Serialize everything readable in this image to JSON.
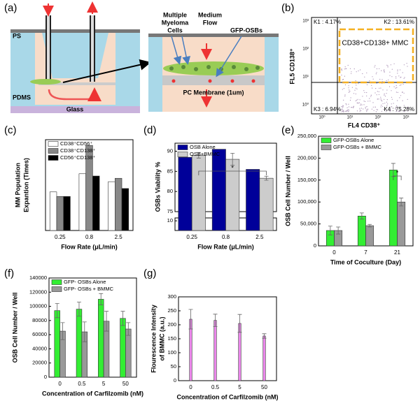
{
  "panel_labels": [
    "(a)",
    "(b)",
    "(c)",
    "(d)",
    "(e)",
    "(f)",
    "(g)"
  ],
  "diagram": {
    "ps": "PS",
    "pdms": "PDMS",
    "glass": "Glass",
    "cells": [
      "Multiple",
      "Myeloma",
      "Cells"
    ],
    "flow": [
      "Medium",
      "Flow"
    ],
    "osbs": "GFP-OSBs",
    "membrane": "PC Membrane (1um)"
  },
  "flow_cytometry": {
    "quadrants": [
      "K1 : 4.17%",
      "K2 : 13.61%",
      "K3 : 6.94%",
      "K4 : 75.28%"
    ],
    "gate": "CD38+CD138+ MMC",
    "ylabel": "FL5 CD138⁺",
    "xlabel": "FL4  CD38⁺",
    "xtick_labels": [
      "10⁰",
      "10¹",
      "10²",
      "10³"
    ],
    "ytick_labels": [
      "10⁰",
      "10¹",
      "10²",
      "10³"
    ]
  },
  "chart_data": [
    {
      "type": "bar",
      "ylabel": [
        "MM Population",
        "Expantion (Times)"
      ],
      "xlabel": "Flow Rate (μL/min)",
      "categories": [
        "0.25",
        "0.8",
        "2.5"
      ],
      "ylim": [
        0,
        8
      ],
      "legend": "upper left",
      "series": [
        {
          "name": "CD38⁺CD56⁺",
          "color": "#ffffff",
          "values": [
            3.4,
            5.0,
            4.3
          ]
        },
        {
          "name": "CD38⁺CD138⁺",
          "color": "#888888",
          "values": [
            3.0,
            7.5,
            4.6
          ]
        },
        {
          "name": "CD56⁺CD138⁺",
          "color": "#000000",
          "values": [
            3.0,
            4.8,
            3.7
          ]
        }
      ]
    },
    {
      "type": "bar",
      "ylabel": "OSBs Viability %",
      "xlabel": "Flow Rate (μL/min)",
      "categories": [
        "0.25",
        "0.8",
        "2.5"
      ],
      "ylim": [
        75,
        92
      ],
      "yticks": [
        75,
        80,
        85,
        90
      ],
      "ybreak": {
        "ylim": [
          0,
          13
        ],
        "yticks": [
          10
        ]
      },
      "legend": "upper left",
      "annotation": "*",
      "series": [
        {
          "name": "OSB Alone",
          "color": "#000099",
          "values": [
            88.5,
            90.5,
            85.5
          ],
          "errors": [
            0,
            0,
            0
          ]
        },
        {
          "name": "OSB+BMMC",
          "color": "#cccccc",
          "values": [
            89,
            88,
            83.3
          ],
          "errors": [
            0.7,
            1.5,
            0.5
          ]
        }
      ]
    },
    {
      "type": "bar",
      "ylabel": "OSB Cell Number / Well",
      "xlabel": "Time of Coculture (Day)",
      "categories": [
        "0",
        "7",
        "21"
      ],
      "ylim": [
        0,
        250000
      ],
      "yticks": [
        0,
        {
          "value": 50000,
          "label": "50,000"
        },
        {
          "value": 100000,
          "label": "100,000"
        },
        {
          "value": 150000,
          "label": "150,000"
        },
        {
          "value": 200000,
          "label": "200,000"
        },
        {
          "value": 250000,
          "label": "250,000"
        }
      ],
      "legend": "upper left",
      "annotation": "*",
      "series": [
        {
          "name": "GFP-OSBs Alone",
          "color": "#33ee33",
          "values": [
            35000,
            68000,
            173000
          ],
          "errors": [
            10000,
            7000,
            15000
          ]
        },
        {
          "name": "GFP-OSBs + BMMC",
          "color": "#999999",
          "values": [
            35000,
            46000,
            100000
          ],
          "errors": [
            8000,
            3000,
            9000
          ]
        }
      ]
    },
    {
      "type": "bar",
      "ylabel": "OSB Cell Number / Well",
      "xlabel": "Concentration of Carfilzomib (nM)",
      "categories": [
        "0",
        "0.5",
        "5",
        "50"
      ],
      "ylim": [
        0,
        140000
      ],
      "yticks": [
        0,
        20000,
        40000,
        60000,
        80000,
        100000,
        120000,
        140000
      ],
      "legend": "upper left",
      "series": [
        {
          "name": "GFP- OSBs Alone",
          "color": "#33ee33",
          "values": [
            94000,
            96000,
            110000,
            83000
          ],
          "errors": [
            10000,
            10000,
            8000,
            10000
          ]
        },
        {
          "name": "GFP- OSBs + BMMC",
          "color": "#999999",
          "values": [
            65000,
            64000,
            79000,
            68000
          ],
          "errors": [
            12000,
            14000,
            14000,
            9000
          ]
        }
      ]
    },
    {
      "type": "bar",
      "ylabel": [
        "Flourescence Intensity",
        "of BMMC (a.u.)"
      ],
      "xlabel": "Concentration of Carfilzomib (nM)",
      "categories": [
        "0",
        "0.5",
        "5",
        "50"
      ],
      "ylim": [
        0,
        300
      ],
      "yticks": [
        0,
        50,
        100,
        150,
        200,
        250,
        300
      ],
      "series": [
        {
          "color": "#ee88ee",
          "values": [
            220,
            216,
            205,
            160
          ],
          "errors": [
            35,
            22,
            32,
            8
          ]
        }
      ]
    }
  ]
}
